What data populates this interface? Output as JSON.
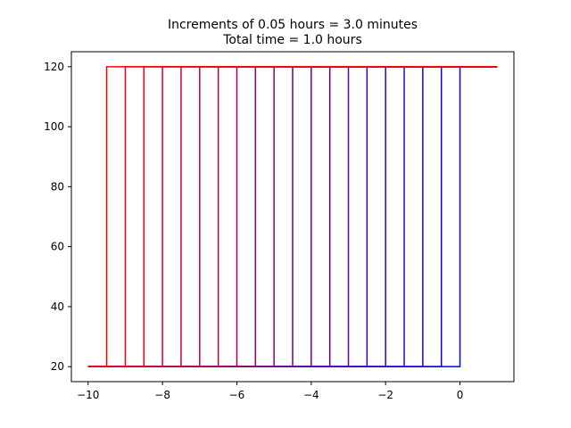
{
  "chart_data": {
    "type": "line",
    "title_lines": [
      "Increments of 0.05 hours = 3.0 minutes",
      "Total time = 1.0 hours"
    ],
    "xlabel": "",
    "ylabel": "",
    "xlim": [
      -10.45,
      1.45
    ],
    "ylim": [
      15,
      125
    ],
    "x_ticks": [
      -10,
      -8,
      -6,
      -4,
      -2,
      0
    ],
    "x_tick_labels": [
      "−10",
      "−8",
      "−6",
      "−4",
      "−2",
      "0"
    ],
    "y_ticks": [
      20,
      40,
      60,
      80,
      100,
      120
    ],
    "y_tick_labels": [
      "20",
      "40",
      "60",
      "80",
      "100",
      "120"
    ],
    "grid": false,
    "legend": "none",
    "color_start": "#0000ff",
    "color_end": "#ff0000",
    "line_shape": {
      "x_min": -10,
      "x_max": 1,
      "y_low": 20,
      "y_high": 120
    },
    "series": [
      {
        "step_x": 0.0,
        "color": "#0000ff"
      },
      {
        "step_x": -0.5,
        "color": "#0d00f2"
      },
      {
        "step_x": -1.0,
        "color": "#1b00e4"
      },
      {
        "step_x": -1.5,
        "color": "#2800d7"
      },
      {
        "step_x": -2.0,
        "color": "#3600c9"
      },
      {
        "step_x": -2.5,
        "color": "#4300bc"
      },
      {
        "step_x": -3.0,
        "color": "#5000af"
      },
      {
        "step_x": -3.5,
        "color": "#5e00a1"
      },
      {
        "step_x": -4.0,
        "color": "#6b0094"
      },
      {
        "step_x": -4.5,
        "color": "#790086"
      },
      {
        "step_x": -5.0,
        "color": "#860079"
      },
      {
        "step_x": -5.5,
        "color": "#94006b"
      },
      {
        "step_x": -6.0,
        "color": "#a1005e"
      },
      {
        "step_x": -6.5,
        "color": "#af0050"
      },
      {
        "step_x": -7.0,
        "color": "#bc0043"
      },
      {
        "step_x": -7.5,
        "color": "#c90036"
      },
      {
        "step_x": -8.0,
        "color": "#d70028"
      },
      {
        "step_x": -8.5,
        "color": "#e4001b"
      },
      {
        "step_x": -9.0,
        "color": "#f2000d"
      },
      {
        "step_x": -9.5,
        "color": "#ff0000"
      }
    ]
  }
}
